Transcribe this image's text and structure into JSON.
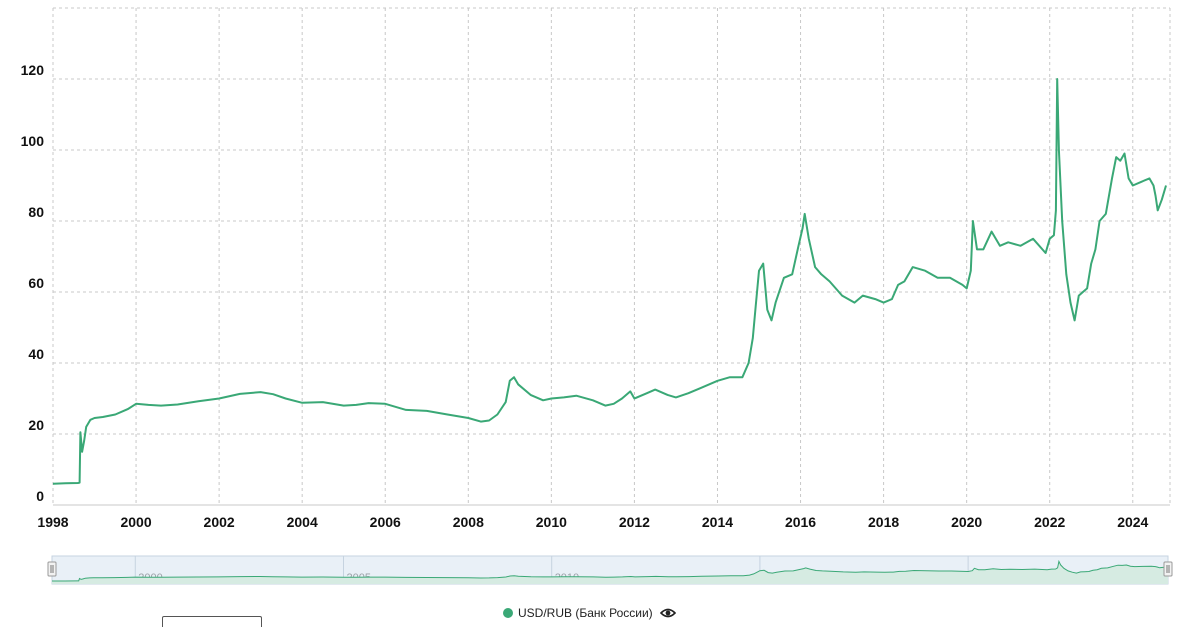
{
  "chart_data": {
    "type": "line",
    "title": "",
    "xlabel": "",
    "ylabel": "",
    "xlim": [
      1998,
      2024.8
    ],
    "ylim": [
      0,
      140
    ],
    "grid": true,
    "legend_position": "bottom-center",
    "x_ticks": [
      "1998",
      "2000",
      "2002",
      "2004",
      "2006",
      "2008",
      "2010",
      "2012",
      "2014",
      "2016",
      "2018",
      "2020",
      "2022",
      "2024"
    ],
    "y_ticks": [
      "0",
      "20",
      "40",
      "60",
      "80",
      "100",
      "120"
    ],
    "navigator_ticks": [
      "2000",
      "2005",
      "2010",
      "2015",
      "2020"
    ],
    "series": [
      {
        "name": "USD/RUB (Банк России)",
        "color": "#3aa876",
        "x": [
          1998.0,
          1998.3,
          1998.6,
          1998.64,
          1998.66,
          1998.7,
          1998.75,
          1998.8,
          1998.9,
          1999.0,
          1999.2,
          1999.5,
          1999.8,
          2000.0,
          2000.3,
          2000.6,
          2001.0,
          2001.5,
          2002.0,
          2002.5,
          2003.0,
          2003.3,
          2003.6,
          2004.0,
          2004.5,
          2005.0,
          2005.3,
          2005.6,
          2006.0,
          2006.5,
          2007.0,
          2007.5,
          2008.0,
          2008.3,
          2008.5,
          2008.7,
          2008.9,
          2009.0,
          2009.1,
          2009.2,
          2009.5,
          2009.8,
          2010.0,
          2010.3,
          2010.6,
          2011.0,
          2011.3,
          2011.5,
          2011.7,
          2011.9,
          2012.0,
          2012.3,
          2012.5,
          2012.8,
          2013.0,
          2013.3,
          2013.6,
          2014.0,
          2014.3,
          2014.6,
          2014.75,
          2014.85,
          2014.92,
          2015.0,
          2015.1,
          2015.2,
          2015.3,
          2015.4,
          2015.6,
          2015.8,
          2015.95,
          2016.05,
          2016.1,
          2016.2,
          2016.35,
          2016.5,
          2016.7,
          2017.0,
          2017.3,
          2017.5,
          2017.8,
          2018.0,
          2018.2,
          2018.35,
          2018.5,
          2018.7,
          2019.0,
          2019.3,
          2019.6,
          2019.9,
          2020.0,
          2020.1,
          2020.15,
          2020.25,
          2020.4,
          2020.6,
          2020.8,
          2021.0,
          2021.3,
          2021.6,
          2021.9,
          2022.0,
          2022.1,
          2022.15,
          2022.18,
          2022.22,
          2022.3,
          2022.4,
          2022.5,
          2022.6,
          2022.7,
          2022.8,
          2022.9,
          2023.0,
          2023.1,
          2023.2,
          2023.35,
          2023.5,
          2023.6,
          2023.7,
          2023.8,
          2023.9,
          2024.0,
          2024.2,
          2024.4,
          2024.5,
          2024.55,
          2024.6,
          2024.7,
          2024.8
        ],
        "y": [
          6.0,
          6.1,
          6.2,
          6.3,
          20.5,
          15.0,
          18.0,
          22.0,
          24.0,
          24.5,
          24.8,
          25.5,
          27.0,
          28.5,
          28.2,
          28.0,
          28.3,
          29.2,
          30.0,
          31.3,
          31.8,
          31.2,
          30.0,
          28.8,
          29.0,
          28.0,
          28.2,
          28.7,
          28.5,
          26.8,
          26.5,
          25.5,
          24.5,
          23.5,
          23.8,
          25.5,
          29.0,
          35.0,
          36.0,
          34.0,
          31.0,
          29.5,
          30.0,
          30.3,
          30.8,
          29.5,
          28.0,
          28.5,
          30.0,
          32.0,
          30.0,
          31.5,
          32.5,
          31.0,
          30.3,
          31.5,
          33.0,
          35.0,
          36.0,
          36.0,
          40.0,
          47.0,
          56.0,
          66.0,
          68.0,
          55.0,
          52.0,
          57.0,
          64.0,
          65.0,
          73.0,
          78.0,
          82.0,
          75.0,
          67.0,
          65.0,
          63.0,
          59.0,
          57.0,
          59.0,
          58.0,
          57.0,
          58.0,
          62.0,
          63.0,
          67.0,
          66.0,
          64.0,
          64.0,
          62.0,
          61.0,
          66.0,
          80.0,
          72.0,
          72.0,
          77.0,
          73.0,
          74.0,
          73.0,
          75.0,
          71.0,
          75.0,
          76.0,
          83.0,
          120.0,
          100.0,
          80.0,
          65.0,
          57.0,
          52.0,
          59.0,
          60.0,
          61.0,
          68.0,
          72.0,
          80.0,
          82.0,
          92.0,
          98.0,
          97.0,
          99.0,
          92.0,
          90.0,
          91.0,
          92.0,
          90.0,
          87.0,
          83.0,
          86.0,
          90.0
        ]
      }
    ]
  },
  "legend": {
    "label": "USD/RUB (Банк России)",
    "eye_icon": "eye-icon"
  }
}
